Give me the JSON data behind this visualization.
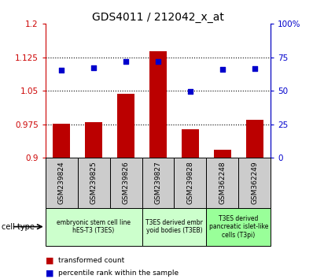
{
  "title": "GDS4011 / 212042_x_at",
  "samples": [
    "GSM239824",
    "GSM239825",
    "GSM239826",
    "GSM239827",
    "GSM239828",
    "GSM362248",
    "GSM362249"
  ],
  "transformed_count": [
    0.976,
    0.98,
    1.043,
    1.138,
    0.963,
    0.918,
    0.984
  ],
  "percentile_rank": [
    65.5,
    67.0,
    72.0,
    72.0,
    49.5,
    66.0,
    66.5
  ],
  "ylim_left": [
    0.9,
    1.2
  ],
  "ylim_right": [
    0,
    100
  ],
  "yticks_left": [
    0.9,
    0.975,
    1.05,
    1.125,
    1.2
  ],
  "yticks_right": [
    0,
    25,
    50,
    75,
    100
  ],
  "ytick_labels_right": [
    "0",
    "25",
    "50",
    "75",
    "100%"
  ],
  "bar_color": "#bb0000",
  "dot_color": "#0000cc",
  "bar_bottom": 0.9,
  "groups": [
    {
      "label": "embryonic stem cell line\nhES-T3 (T3ES)",
      "start": 0,
      "end": 3,
      "color": "#ccffcc"
    },
    {
      "label": "T3ES derived embr\nyoid bodies (T3EB)",
      "start": 3,
      "end": 5,
      "color": "#ccffcc"
    },
    {
      "label": "T3ES derived\npancreatic islet-like\ncells (T3pi)",
      "start": 5,
      "end": 7,
      "color": "#99ff99"
    }
  ],
  "cell_type_label": "cell type",
  "legend_bar_label": "transformed count",
  "legend_dot_label": "percentile rank within the sample",
  "axis_color_left": "#cc0000",
  "axis_color_right": "#0000cc",
  "sample_box_color": "#cccccc",
  "title_fontsize": 10
}
